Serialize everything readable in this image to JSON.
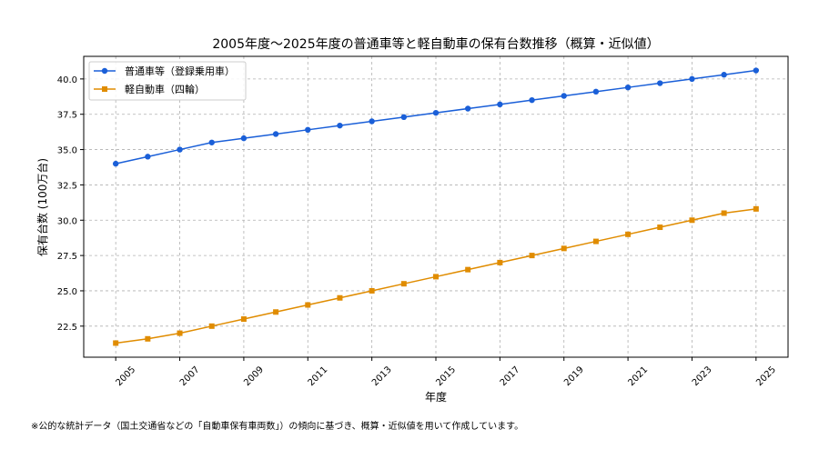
{
  "chart_data": {
    "type": "line",
    "title": "2005年度〜2025年度の普通車等と軽自動車の保有台数推移（概算・近似値）",
    "xlabel": "年度",
    "ylabel": "保有台数 (100万台)",
    "x": [
      2005,
      2006,
      2007,
      2008,
      2009,
      2010,
      2011,
      2012,
      2013,
      2014,
      2015,
      2016,
      2017,
      2018,
      2019,
      2020,
      2021,
      2022,
      2023,
      2024,
      2025
    ],
    "xticks": [
      "2005",
      "2007",
      "2009",
      "2011",
      "2013",
      "2015",
      "2017",
      "2019",
      "2021",
      "2023",
      "2025"
    ],
    "yticks": [
      "22.5",
      "25.0",
      "27.5",
      "30.0",
      "32.5",
      "35.0",
      "37.5",
      "40.0"
    ],
    "xlim": [
      2004,
      2026
    ],
    "ylim": [
      20.3,
      41.6
    ],
    "grid": true,
    "legend_position": "top-left",
    "series": [
      {
        "name": "普通車等（登録乗用車）",
        "color": "#1a5fd8",
        "marker": "circle",
        "values": [
          34.0,
          34.5,
          35.0,
          35.5,
          35.8,
          36.1,
          36.4,
          36.7,
          37.0,
          37.3,
          37.6,
          37.9,
          38.2,
          38.5,
          38.8,
          39.1,
          39.4,
          39.7,
          40.0,
          40.3,
          40.6
        ]
      },
      {
        "name": "軽自動車（四輪）",
        "color": "#e08c00",
        "marker": "square",
        "values": [
          21.3,
          21.6,
          22.0,
          22.5,
          23.0,
          23.5,
          24.0,
          24.5,
          25.0,
          25.5,
          26.0,
          26.5,
          27.0,
          27.5,
          28.0,
          28.5,
          29.0,
          29.5,
          30.0,
          30.5,
          30.8
        ]
      }
    ]
  },
  "footnote": "※公的な統計データ（国土交通省などの「自動車保有車両数」）の傾向に基づき、概算・近似値を用いて作成しています。"
}
